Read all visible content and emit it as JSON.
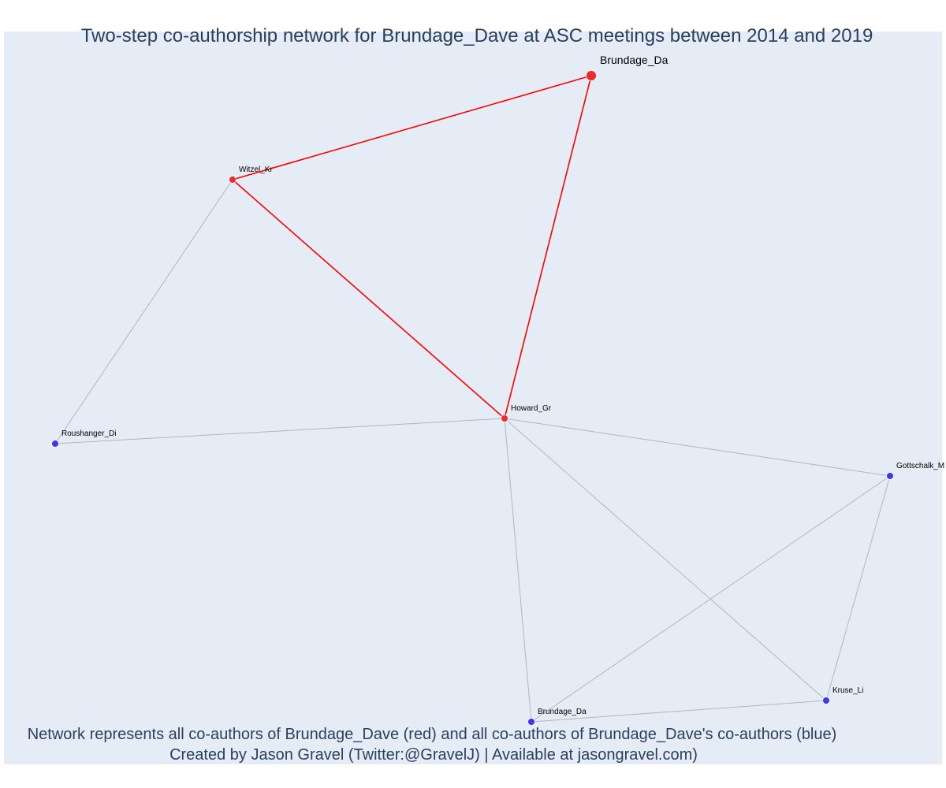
{
  "title": "Two-step co-authorship network for Brundage_Dave at ASC meetings between 2014 and 2019",
  "footer": {
    "line1": "Network represents all co-authors of Brundage_Dave (red) and all co-authors of Brundage_Dave's co-authors (blue)",
    "line2": "Created by Jason Gravel (Twitter:@GravelJ) | Available at jasongravel.com)"
  },
  "colors": {
    "plot_background": "#e5ecf6",
    "title_text": "#2a3f5f",
    "ego_node": "#ef2b2b",
    "coauthor_node": "#ef2b2b",
    "second_step_node": "#3b3bea",
    "ego_edge": "#ff0000",
    "other_edge": "#b4b4c4"
  },
  "nodes": [
    {
      "id": "brundage_ego",
      "label": "Brundage_Da",
      "group": "ego"
    },
    {
      "id": "witzel",
      "label": "Witzel_Kr",
      "group": "coauthor"
    },
    {
      "id": "howard",
      "label": "Howard_Gr",
      "group": "coauthor"
    },
    {
      "id": "roushanger",
      "label": "Roushanger_Di",
      "group": "second"
    },
    {
      "id": "gottschalk",
      "label": "Gottschalk_M",
      "group": "second"
    },
    {
      "id": "kruse",
      "label": "Kruse_Li",
      "group": "second"
    },
    {
      "id": "brundage_2",
      "label": "Brundage_Da",
      "group": "second"
    }
  ],
  "edges": [
    {
      "source": "brundage_ego",
      "target": "witzel",
      "type": "ego"
    },
    {
      "source": "brundage_ego",
      "target": "howard",
      "type": "ego"
    },
    {
      "source": "witzel",
      "target": "howard",
      "type": "ego"
    },
    {
      "source": "witzel",
      "target": "roushanger",
      "type": "other"
    },
    {
      "source": "howard",
      "target": "roushanger",
      "type": "other"
    },
    {
      "source": "howard",
      "target": "gottschalk",
      "type": "other"
    },
    {
      "source": "howard",
      "target": "kruse",
      "type": "other"
    },
    {
      "source": "howard",
      "target": "brundage_2",
      "type": "other"
    },
    {
      "source": "gottschalk",
      "target": "kruse",
      "type": "other"
    },
    {
      "source": "gottschalk",
      "target": "brundage_2",
      "type": "other"
    },
    {
      "source": "kruse",
      "target": "brundage_2",
      "type": "other"
    }
  ]
}
